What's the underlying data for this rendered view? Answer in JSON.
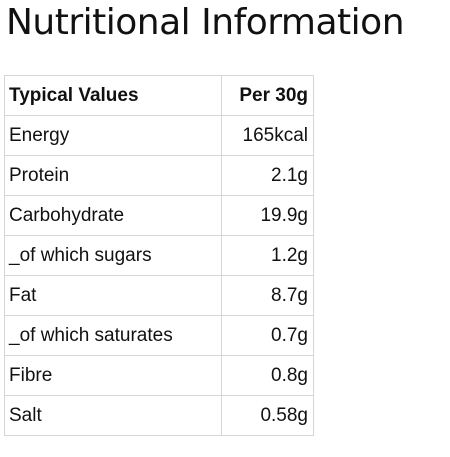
{
  "header": {
    "title": "Nutritional Information"
  },
  "table": {
    "columns": [
      "Typical Values",
      "Per 30g"
    ],
    "rows": [
      [
        "Energy",
        "165kcal"
      ],
      [
        "Protein",
        "2.1g"
      ],
      [
        "Carbohydrate",
        "19.9g"
      ],
      [
        "_of which sugars",
        "1.2g"
      ],
      [
        "Fat",
        "8.7g"
      ],
      [
        "_of which saturates",
        "0.7g"
      ],
      [
        "Fibre",
        "0.8g"
      ],
      [
        "Salt",
        "0.58g"
      ]
    ]
  }
}
